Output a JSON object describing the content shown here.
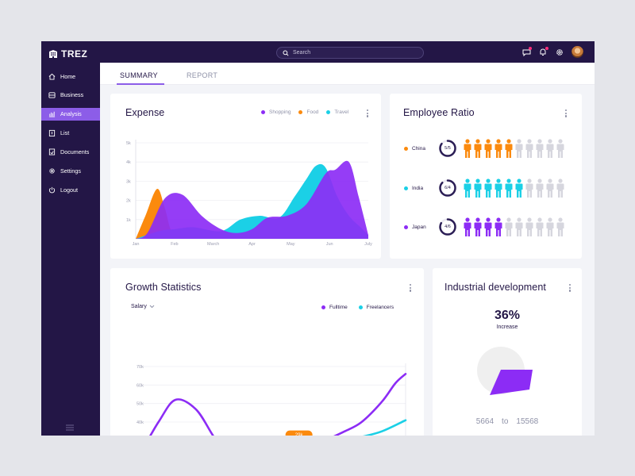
{
  "app": {
    "name": "TREZ"
  },
  "sidebar": {
    "items": [
      {
        "label": "Home",
        "icon": "home-icon",
        "active": false
      },
      {
        "label": "Business",
        "icon": "briefcase-icon",
        "active": false
      },
      {
        "label": "Analysis",
        "icon": "bar-chart-icon",
        "active": true
      },
      {
        "label": "List",
        "icon": "clipboard-icon",
        "active": false
      },
      {
        "label": "Documents",
        "icon": "document-icon",
        "active": false
      },
      {
        "label": "Settings",
        "icon": "gear-icon",
        "active": false
      },
      {
        "label": "Logout",
        "icon": "power-icon",
        "active": false
      }
    ]
  },
  "topbar": {
    "search_placeholder": "Search"
  },
  "tabs": [
    {
      "label": "SUMMARY",
      "active": true
    },
    {
      "label": "REPORT",
      "active": false
    }
  ],
  "colors": {
    "purple": "#8c2cf5",
    "orange": "#fb8a0e",
    "cyan": "#1bd0e6",
    "sidebar": "#231646",
    "active": "#8c5de8"
  },
  "expense": {
    "title": "Expense",
    "legend": [
      {
        "label": "Shopping",
        "color": "#8c2cf5"
      },
      {
        "label": "Food",
        "color": "#fb8a0e"
      },
      {
        "label": "Travel",
        "color": "#1bd0e6"
      }
    ]
  },
  "employee": {
    "title": "Employee Ratio",
    "rows": [
      {
        "country": "China",
        "ratio": "5/5",
        "color": "#fb8a0e",
        "filled": 5,
        "total": 10
      },
      {
        "country": "India",
        "ratio": "6/4",
        "color": "#1bd0e6",
        "filled": 6,
        "total": 10
      },
      {
        "country": "Japan",
        "ratio": "4/6",
        "color": "#8c2cf5",
        "filled": 4,
        "total": 10
      }
    ]
  },
  "growth": {
    "title": "Growth Statistics",
    "dropdown": "Salary",
    "legend": [
      {
        "label": "Fulltime",
        "color": "#8c2cf5"
      },
      {
        "label": "Freelancers",
        "color": "#1bd0e6"
      }
    ],
    "tooltip": "29k"
  },
  "industrial": {
    "title": "Industrial development",
    "percent": "36%",
    "percent_label": "Increase",
    "from": "5664",
    "to_label": "to",
    "to": "15568",
    "pie_fraction": 0.36
  },
  "chart_data": [
    {
      "type": "area",
      "title": "Expense",
      "x": [
        "Jan",
        "Feb",
        "March",
        "Apr",
        "May",
        "Jun",
        "July"
      ],
      "y_ticks": [
        "1k",
        "2k",
        "3k",
        "4k",
        "5k"
      ],
      "ylim": [
        0,
        5000
      ],
      "series": [
        {
          "name": "Shopping",
          "color": "#8c2cf5",
          "points": [
            [
              0,
              0
            ],
            [
              0.3,
              300
            ],
            [
              0.75,
              2100
            ],
            [
              1.2,
              2300
            ],
            [
              1.7,
              1200
            ],
            [
              2.2,
              500
            ],
            [
              2.6,
              300
            ],
            [
              3.0,
              500
            ],
            [
              3.4,
              1100
            ],
            [
              3.9,
              1200
            ],
            [
              4.4,
              1800
            ],
            [
              4.9,
              3400
            ],
            [
              5.15,
              3600
            ],
            [
              5.5,
              4000
            ],
            [
              5.75,
              2200
            ],
            [
              6.0,
              200
            ]
          ]
        },
        {
          "name": "Food",
          "color": "#fb8a0e",
          "points": [
            [
              0,
              0
            ],
            [
              0.25,
              1200
            ],
            [
              0.55,
              2600
            ],
            [
              0.75,
              1600
            ],
            [
              0.95,
              300
            ],
            [
              1.3,
              300
            ],
            [
              2.3,
              300
            ]
          ]
        },
        {
          "name": "Travel",
          "color": "#1bd0e6",
          "points": [
            [
              0,
              0
            ],
            [
              0.6,
              400
            ],
            [
              1.0,
              500
            ],
            [
              1.5,
              600
            ],
            [
              2.2,
              400
            ],
            [
              2.7,
              1000
            ],
            [
              3.2,
              1200
            ],
            [
              3.7,
              1100
            ],
            [
              4.1,
              2200
            ],
            [
              4.4,
              3100
            ],
            [
              4.65,
              3800
            ],
            [
              4.9,
              3700
            ],
            [
              5.2,
              2200
            ],
            [
              5.5,
              1200
            ],
            [
              5.8,
              600
            ],
            [
              6.0,
              200
            ]
          ]
        }
      ]
    },
    {
      "type": "line",
      "title": "Growth Statistics",
      "y_ticks": [
        "70k",
        "60k",
        "50k",
        "40k",
        "30k",
        "20k",
        "10k"
      ],
      "ylim": [
        10000,
        70000
      ],
      "series": [
        {
          "name": "Fulltime",
          "color": "#8c2cf5",
          "points": [
            [
              0,
              18000
            ],
            [
              0.4,
              22000
            ],
            [
              1.0,
              40000
            ],
            [
              1.5,
              52000
            ],
            [
              2.1,
              47000
            ],
            [
              2.6,
              33000
            ],
            [
              3.0,
              22000
            ],
            [
              3.5,
              15000
            ],
            [
              4.1,
              17000
            ],
            [
              4.7,
              23000
            ],
            [
              5.3,
              26000
            ],
            [
              5.9,
              30000
            ],
            [
              6.5,
              35000
            ],
            [
              7.0,
              40000
            ],
            [
              7.6,
              51000
            ],
            [
              8.0,
              61000
            ],
            [
              8.3,
              66000
            ]
          ]
        },
        {
          "name": "Freelancers",
          "color": "#1bd0e6",
          "points": [
            [
              0.9,
              10000
            ],
            [
              1.2,
              16000
            ],
            [
              1.6,
              22000
            ],
            [
              2.0,
              25000
            ],
            [
              2.5,
              24000
            ],
            [
              3.0,
              18000
            ],
            [
              3.5,
              15000
            ],
            [
              4.0,
              17000
            ],
            [
              4.5,
              23000
            ],
            [
              5.0,
              29000
            ],
            [
              5.6,
              27000
            ],
            [
              6.3,
              29000
            ],
            [
              7.0,
              32000
            ],
            [
              7.6,
              35000
            ],
            [
              8.3,
              41000
            ]
          ]
        }
      ]
    },
    {
      "type": "pie",
      "title": "Industrial development",
      "values": [
        36,
        64
      ]
    }
  ]
}
